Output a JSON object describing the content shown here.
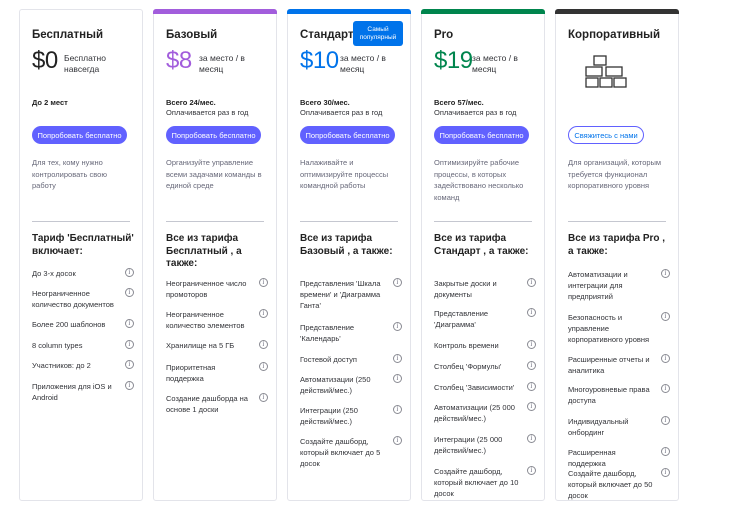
{
  "badge": "Самый популярный",
  "plans": [
    {
      "name": "Бесплатный",
      "price": "$0",
      "price_desc": "Бесплатно навсегда",
      "summary_bold": "До 2 мест",
      "summary_sub": "",
      "button": "Попробовать бесплатно",
      "subtitle": "Для тех, кому нужно контролировать свою работу",
      "includes_title": "Тариф 'Бесплатный' включает:",
      "features": [
        "До 3-х досок",
        "Неограниченное количество документов",
        "Более 200 шаблонов",
        "8 column types",
        "Участников: до 2",
        "Приложения для iOS и Android"
      ]
    },
    {
      "name": "Базовый",
      "price": "$8",
      "price_desc": "за место / в месяц",
      "summary_bold": "Всего 24/мес.",
      "summary_sub": "Оплачивается раз в год",
      "button": "Попробовать бесплатно",
      "subtitle": "Организуйте управление всеми задачами команды в единой среде",
      "includes_title": "Все из тарифа Бесплатный , а также:",
      "features": [
        "Неограниченное число промоторов",
        "Неограниченное количество элементов",
        "Хранилище на 5 ГБ",
        "Приоритетная поддержка",
        "Создание дашборда на основе 1 доски"
      ]
    },
    {
      "name": "Стандарт",
      "price": "$10",
      "price_desc": "за место / в месяц",
      "summary_bold": "Всего 30/мес.",
      "summary_sub": "Оплачивается раз в год",
      "button": "Попробовать бесплатно",
      "subtitle": "Налаживайте и оптимизируйте процессы командной работы",
      "includes_title": "Все из тарифа Базовый , а также:",
      "features": [
        "Представления 'Шкала времени' и 'Диаграмма Ганта'",
        "Представление 'Календарь'",
        "Гостевой доступ",
        "Автоматизации (250 действий/мес.)",
        "Интеграции (250 действий/мес.)",
        "Создайте дашборд, который включает до 5 досок"
      ]
    },
    {
      "name": "Pro",
      "price": "$19",
      "price_desc": "за место / в месяц",
      "summary_bold": "Всего 57/мес.",
      "summary_sub": "Оплачивается раз в год",
      "button": "Попробовать бесплатно",
      "subtitle": "Оптимизируйте рабочие процессы, в которых задействовано несколько команд",
      "includes_title": "Все из тарифа Стандарт , а также:",
      "features": [
        "Закрытые доски и документы",
        "Представление 'Диаграмма'",
        "Контроль времени",
        "Столбец 'Формулы'",
        "Столбец 'Зависимости'",
        "Автоматизации (25 000 действий/мес.)",
        "Интеграции (25 000 действий/мес.)",
        "Создайте дашборд, который включает до 10 досок"
      ]
    },
    {
      "name": "Корпоративный",
      "price": "",
      "price_desc": "",
      "summary_bold": "",
      "summary_sub": "",
      "button": "Свяжитесь с нами",
      "subtitle": "Для организаций, которым требуется функционал корпоративного уровня",
      "includes_title": "Все из тарифа Pro , а также:",
      "features": [
        "Автоматизации и интеграции для предприятий",
        "Безопасность и управление корпоративного уровня",
        "Расширенные отчеты и аналитика",
        "Многоуровневые права доступа",
        "Индивидуальный онбординг",
        "Расширенная поддержка",
        "Создайте дашборд, который включает до 50 досок"
      ]
    }
  ],
  "colors": {
    "basic": "#a25ddc",
    "standard": "#0073ea",
    "pro": "#00854d",
    "enterprise": "#333333",
    "button": "#6161ff",
    "badge": "#0073ea"
  },
  "icons": {
    "info": "info-icon",
    "enterprise": "blocks-icon"
  }
}
